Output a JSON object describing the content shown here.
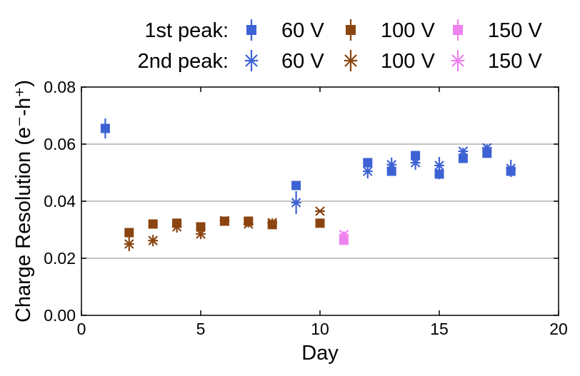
{
  "chart_data": {
    "type": "scatter",
    "title": "",
    "xlabel": "Day",
    "ylabel": "Charge Resolution (e⁻-h⁺)",
    "xlim": [
      0,
      20
    ],
    "ylim": [
      0.0,
      0.08
    ],
    "xticks": [
      0,
      5,
      10,
      15,
      20
    ],
    "yticks": [
      0.0,
      0.02,
      0.04,
      0.06,
      0.08
    ],
    "xtick_labels": [
      "0",
      "5",
      "10",
      "15",
      "20"
    ],
    "ytick_labels": [
      "0.00",
      "0.02",
      "0.04",
      "0.06",
      "0.08"
    ],
    "grid": "horizontal",
    "legend": {
      "placement": "top",
      "rows": [
        {
          "label": "1st peak:",
          "entries": [
            {
              "series": "1st peak 60 V",
              "text": "60 V"
            },
            {
              "series": "1st peak 100 V",
              "text": "100 V"
            },
            {
              "series": "1st peak 150 V",
              "text": "150 V"
            }
          ]
        },
        {
          "label": "2nd peak:",
          "entries": [
            {
              "series": "2nd peak 60 V",
              "text": "60 V"
            },
            {
              "series": "2nd peak 100 V",
              "text": "100 V"
            },
            {
              "series": "2nd peak 150 V",
              "text": "150 V"
            }
          ]
        }
      ]
    },
    "series": [
      {
        "name": "1st peak 60 V",
        "peak": "1st",
        "voltage": "60 V",
        "marker": "square",
        "color": "#3d62d4",
        "points": [
          {
            "x": 1,
            "y": 0.0655,
            "err": 0.0035
          },
          {
            "x": 9,
            "y": 0.0455,
            "err": 0.001
          },
          {
            "x": 12,
            "y": 0.0535,
            "err": 0.0012
          },
          {
            "x": 13,
            "y": 0.0505,
            "err": 0.0012
          },
          {
            "x": 14,
            "y": 0.056,
            "err": 0.001
          },
          {
            "x": 15,
            "y": 0.0495,
            "err": 0.0018
          },
          {
            "x": 16,
            "y": 0.055,
            "err": 0.001
          },
          {
            "x": 17,
            "y": 0.0568,
            "err": 0.001
          },
          {
            "x": 18,
            "y": 0.0505,
            "err": 0.0012
          }
        ]
      },
      {
        "name": "1st peak 100 V",
        "peak": "1st",
        "voltage": "100 V",
        "marker": "square",
        "color": "#8b4510",
        "points": [
          {
            "x": 2,
            "y": 0.029,
            "err": 0.0008
          },
          {
            "x": 3,
            "y": 0.032,
            "err": 0.0008
          },
          {
            "x": 4,
            "y": 0.0323,
            "err": 0.0012
          },
          {
            "x": 5,
            "y": 0.031,
            "err": 0.001
          },
          {
            "x": 6,
            "y": 0.033,
            "err": 0.0006
          },
          {
            "x": 7,
            "y": 0.033,
            "err": 0.0006
          },
          {
            "x": 8,
            "y": 0.0318,
            "err": 0.0008
          },
          {
            "x": 10,
            "y": 0.0323,
            "err": 0.0006
          }
        ]
      },
      {
        "name": "1st peak 150 V",
        "peak": "1st",
        "voltage": "150 V",
        "marker": "square",
        "color": "#ee82ee",
        "points": [
          {
            "x": 11,
            "y": 0.0263,
            "err": 0.0008
          }
        ]
      },
      {
        "name": "2nd peak 60 V",
        "peak": "2nd",
        "voltage": "60 V",
        "marker": "star",
        "color": "#3d62d4",
        "points": [
          {
            "x": 9,
            "y": 0.0395,
            "err": 0.004
          },
          {
            "x": 12,
            "y": 0.0505,
            "err": 0.0025
          },
          {
            "x": 13,
            "y": 0.0528,
            "err": 0.0025
          },
          {
            "x": 14,
            "y": 0.0535,
            "err": 0.0025
          },
          {
            "x": 15,
            "y": 0.0525,
            "err": 0.003
          },
          {
            "x": 16,
            "y": 0.0575,
            "err": 0.0012
          },
          {
            "x": 17,
            "y": 0.0587,
            "err": 0.0012
          },
          {
            "x": 18,
            "y": 0.0515,
            "err": 0.003
          }
        ]
      },
      {
        "name": "2nd peak 100 V",
        "peak": "2nd",
        "voltage": "100 V",
        "marker": "star",
        "color": "#8b4510",
        "points": [
          {
            "x": 2,
            "y": 0.025,
            "err": 0.0025
          },
          {
            "x": 3,
            "y": 0.0262,
            "err": 0.002
          },
          {
            "x": 4,
            "y": 0.031,
            "err": 0.002
          },
          {
            "x": 5,
            "y": 0.0285,
            "err": 0.0018
          },
          {
            "x": 6,
            "y": 0.0332,
            "err": 0.0008
          },
          {
            "x": 7,
            "y": 0.032,
            "err": 0.0012
          },
          {
            "x": 8,
            "y": 0.0325,
            "err": 0.0015
          },
          {
            "x": 10,
            "y": 0.0365,
            "err": 0.0005
          }
        ]
      },
      {
        "name": "2nd peak 150 V",
        "peak": "2nd",
        "voltage": "150 V",
        "marker": "star",
        "color": "#ee82ee",
        "points": [
          {
            "x": 11,
            "y": 0.0283,
            "err": 0.0012
          }
        ]
      }
    ]
  }
}
